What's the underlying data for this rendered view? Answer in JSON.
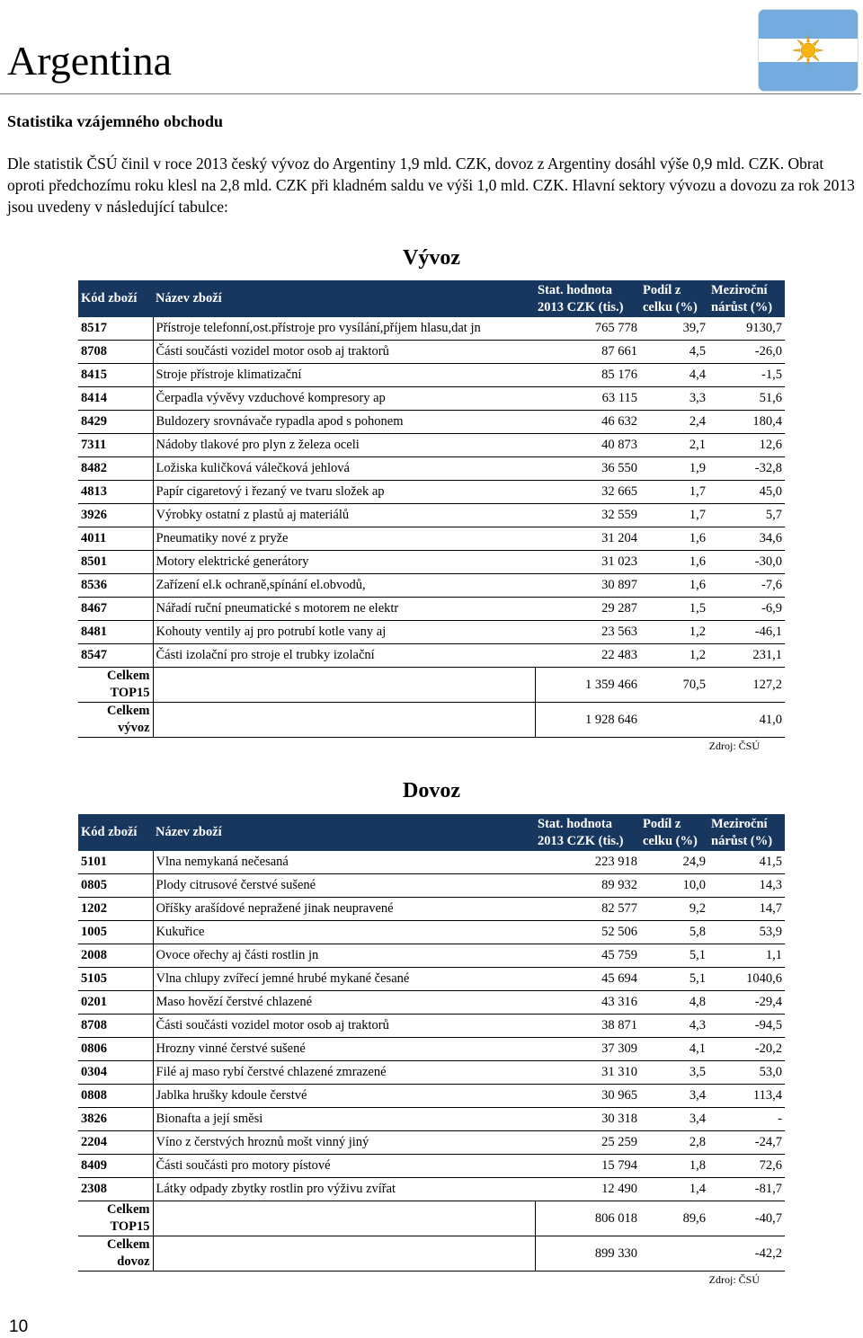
{
  "header": {
    "title": "Argentina"
  },
  "section_title": "Statistika vzájemného obchodu",
  "intro": "Dle statistik ČSÚ činil v roce 2013 český vývoz do Argentiny 1,9 mld. CZK, dovoz z Argentiny dosáhl výše 0,9 mld. CZK. Obrat oproti předchozímu roku klesl na 2,8 mld. CZK při kladném saldu ve výši 1,0 mld. CZK. Hlavní sektory vývozu a dovozu za rok 2013 jsou uvedeny v následující tabulce:",
  "tables": [
    {
      "title": "Vývoz",
      "columns": [
        "Kód zboží",
        "Název zboží",
        "Stat. hodnota 2013 CZK (tis.)",
        "Podíl z celku (%)",
        "Meziroční nárůst (%)"
      ],
      "rows": [
        [
          "8517",
          "Přístroje telefonní,ost.přístroje pro vysílání,příjem hlasu,dat jn",
          "765 778",
          "39,7",
          "9130,7"
        ],
        [
          "8708",
          "Části součásti vozidel motor osob aj traktorů",
          "87 661",
          "4,5",
          "-26,0"
        ],
        [
          "8415",
          "Stroje přístroje klimatizační",
          "85 176",
          "4,4",
          "-1,5"
        ],
        [
          "8414",
          "Čerpadla vývěvy vzduchové kompresory ap",
          "63 115",
          "3,3",
          "51,6"
        ],
        [
          "8429",
          "Buldozery srovnávače rypadla apod s pohonem",
          "46 632",
          "2,4",
          "180,4"
        ],
        [
          "7311",
          "Nádoby tlakové pro plyn z železa oceli",
          "40 873",
          "2,1",
          "12,6"
        ],
        [
          "8482",
          "Ložiska kuličková válečková jehlová",
          "36 550",
          "1,9",
          "-32,8"
        ],
        [
          "4813",
          "Papír cigaretový i řezaný ve tvaru složek ap",
          "32 665",
          "1,7",
          "45,0"
        ],
        [
          "3926",
          "Výrobky ostatní z plastů aj materiálů",
          "32 559",
          "1,7",
          "5,7"
        ],
        [
          "4011",
          "Pneumatiky nové z pryže",
          "31 204",
          "1,6",
          "34,6"
        ],
        [
          "8501",
          "Motory elektrické generátory",
          "31 023",
          "1,6",
          "-30,0"
        ],
        [
          "8536",
          "Zařízení el.k ochraně,spínání el.obvodů,",
          "30 897",
          "1,6",
          "-7,6"
        ],
        [
          "8467",
          "Nářadí ruční pneumatické s motorem ne elektr",
          "29 287",
          "1,5",
          "-6,9"
        ],
        [
          "8481",
          "Kohouty ventily aj pro potrubí kotle vany aj",
          "23 563",
          "1,2",
          "-46,1"
        ],
        [
          "8547",
          "Části izolační pro stroje el trubky izolační",
          "22 483",
          "1,2",
          "231,1"
        ]
      ],
      "totals": [
        {
          "label": "Celkem TOP15",
          "value": "1 359 466",
          "share": "70,5",
          "growth": "127,2"
        },
        {
          "label": "Celkem vývoz",
          "value": "1 928 646",
          "growth": "41,0"
        }
      ],
      "source": "Zdroj: ČSÚ"
    },
    {
      "title": "Dovoz",
      "columns": [
        "Kód zboží",
        "Název zboží",
        "Stat. hodnota 2013 CZK (tis.)",
        "Podíl z celku (%)",
        "Meziroční nárůst (%)"
      ],
      "rows": [
        [
          "5101",
          "Vlna nemykaná nečesaná",
          "223 918",
          "24,9",
          "41,5"
        ],
        [
          "0805",
          "Plody citrusové čerstvé sušené",
          "89 932",
          "10,0",
          "14,3"
        ],
        [
          "1202",
          "Oříšky arašídové nepražené jinak neupravené",
          "82 577",
          "9,2",
          "14,7"
        ],
        [
          "1005",
          "Kukuřice",
          "52 506",
          "5,8",
          "53,9"
        ],
        [
          "2008",
          "Ovoce ořechy aj části rostlin jn",
          "45 759",
          "5,1",
          "1,1"
        ],
        [
          "5105",
          "Vlna chlupy zvířecí jemné hrubé mykané česané",
          "45 694",
          "5,1",
          "1040,6"
        ],
        [
          "0201",
          "Maso hovězí čerstvé chlazené",
          "43 316",
          "4,8",
          "-29,4"
        ],
        [
          "8708",
          "Části součásti vozidel motor osob aj traktorů",
          "38 871",
          "4,3",
          "-94,5"
        ],
        [
          "0806",
          "Hrozny vinné čerstvé sušené",
          "37 309",
          "4,1",
          "-20,2"
        ],
        [
          "0304",
          "Filé aj maso rybí čerstvé chlazené zmrazené",
          "31 310",
          "3,5",
          "53,0"
        ],
        [
          "0808",
          "Jablka hrušky kdoule čerstvé",
          "30 965",
          "3,4",
          "113,4"
        ],
        [
          "3826",
          "Bionafta a její směsi",
          "30 318",
          "3,4",
          "-"
        ],
        [
          "2204",
          "Víno z čerstvých hroznů mošt vinný jiný",
          "25 259",
          "2,8",
          "-24,7"
        ],
        [
          "8409",
          "Části součásti pro motory pístové",
          "15 794",
          "1,8",
          "72,6"
        ],
        [
          "2308",
          "Látky odpady zbytky rostlin pro výživu zvířat",
          "12 490",
          "1,4",
          "-81,7"
        ]
      ],
      "totals": [
        {
          "label": "Celkem TOP15",
          "value": "806 018",
          "share": "89,6",
          "growth": "-40,7"
        },
        {
          "label": "Celkem dovoz",
          "value": "899 330",
          "growth": "-42,2"
        }
      ],
      "source": "Zdroj: ČSÚ"
    }
  ],
  "page_number": "10"
}
